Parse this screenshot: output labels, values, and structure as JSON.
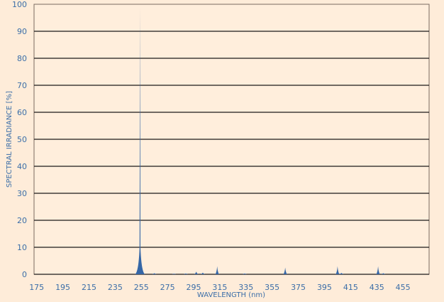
{
  "chart_data": {
    "type": "area",
    "title": "",
    "xlabel": "WAVELENGTH (nm)",
    "ylabel": "SPECTRAL IRRADIANCE [%]",
    "xlim": [
      173,
      475
    ],
    "ylim": [
      0,
      100
    ],
    "grid": true,
    "x_ticks": [
      175,
      195,
      215,
      235,
      255,
      275,
      295,
      315,
      335,
      355,
      375,
      395,
      415,
      435,
      455
    ],
    "y_ticks": [
      0,
      10,
      20,
      30,
      40,
      50,
      60,
      70,
      80,
      90,
      100
    ],
    "peaks": [
      {
        "x": 254,
        "y": 99
      },
      {
        "x": 265,
        "y": 0.4
      },
      {
        "x": 280,
        "y": 0.2
      },
      {
        "x": 289,
        "y": 0.3
      },
      {
        "x": 297,
        "y": 1
      },
      {
        "x": 302,
        "y": 0.6
      },
      {
        "x": 313,
        "y": 3
      },
      {
        "x": 334,
        "y": 0.3
      },
      {
        "x": 365,
        "y": 2.5
      },
      {
        "x": 405,
        "y": 3
      },
      {
        "x": 408,
        "y": 0.5
      },
      {
        "x": 436,
        "y": 3
      },
      {
        "x": 440,
        "y": 0.4
      }
    ],
    "colors": {
      "fill": "#3566a6",
      "grid": "#1a1a1a",
      "text": "#3b6ea8",
      "plot_bg": "#ffeedc"
    }
  }
}
